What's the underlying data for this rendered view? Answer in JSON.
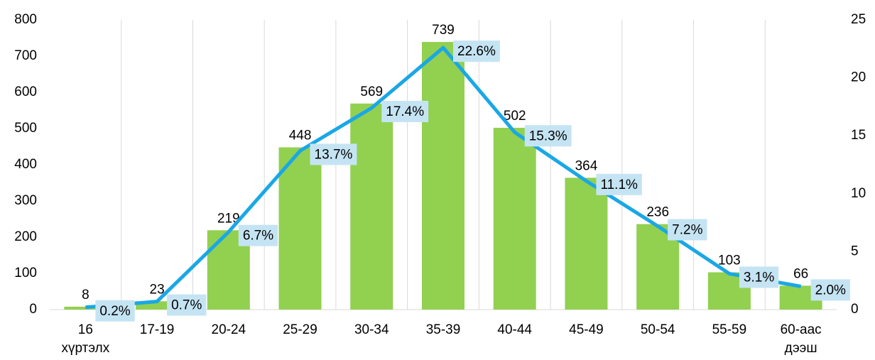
{
  "chart_data": {
    "type": "bar",
    "categories": [
      "16\nхүртэлх",
      "17-19",
      "20-24",
      "25-29",
      "30-34",
      "35-39",
      "40-44",
      "45-49",
      "50-54",
      "55-59",
      "60-аас\nдээш"
    ],
    "series": [
      {
        "type": "bar",
        "color": "#92d050",
        "values": [
          8,
          23,
          219,
          448,
          569,
          739,
          502,
          364,
          236,
          103,
          66
        ]
      },
      {
        "type": "line",
        "axis": "y2",
        "color": "#1aa7e6",
        "values": [
          0.2,
          0.7,
          6.7,
          13.7,
          17.4,
          22.6,
          15.3,
          11.1,
          7.2,
          3.1,
          2.0
        ],
        "value_labels": [
          "0.2%",
          "0.7%",
          "6.7%",
          "13.7%",
          "17.4%",
          "22.6%",
          "15.3%",
          "11.1%",
          "7.2%",
          "3.1%",
          "2.0%"
        ]
      }
    ],
    "ylim": [
      0,
      800
    ],
    "yticks": [
      0,
      100,
      200,
      300,
      400,
      500,
      600,
      700,
      800
    ],
    "y2lim": [
      0,
      25
    ],
    "y2ticks": [
      0,
      5,
      10,
      15,
      20,
      25
    ]
  }
}
